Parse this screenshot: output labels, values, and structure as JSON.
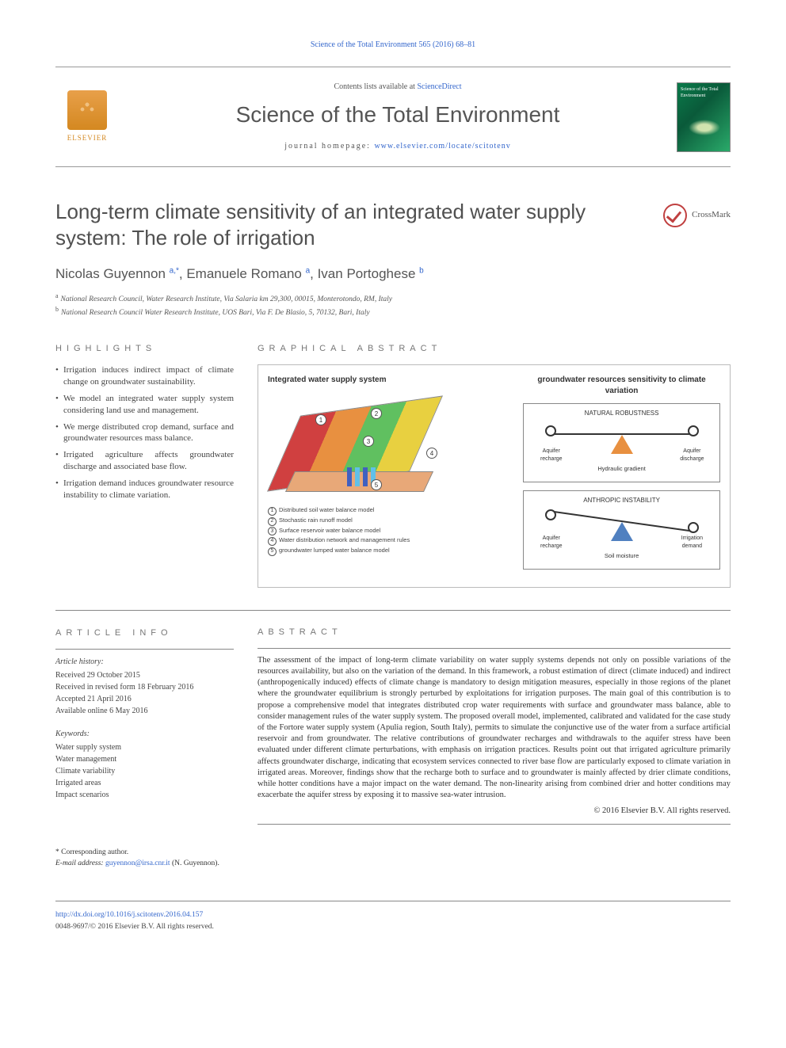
{
  "running_head": "Science of the Total Environment 565 (2016) 68–81",
  "masthead": {
    "publisher": "ELSEVIER",
    "contents_prefix": "Contents lists available at ",
    "contents_link": "ScienceDirect",
    "journal": "Science of the Total Environment",
    "homepage_prefix": "journal homepage: ",
    "homepage_link": "www.elsevier.com/locate/scitotenv",
    "cover_text": "Science of the Total Environment"
  },
  "article": {
    "title": "Long-term climate sensitivity of an integrated water supply system: The role of irrigation",
    "crossmark": "CrossMark",
    "authors_html": "Nicolas Guyennon <sup>a,*</sup>, Emanuele Romano <sup>a</sup>, Ivan Portoghese <sup>b</sup>",
    "affiliations": [
      {
        "sup": "a",
        "text": "National Research Council, Water Research Institute, Via Salaria km 29,300, 00015, Monterotondo, RM, Italy"
      },
      {
        "sup": "b",
        "text": "National Research Council Water Research Institute, UOS Bari, Via F. De Blasio, 5, 70132, Bari, Italy"
      }
    ]
  },
  "highlights": {
    "label": "HIGHLIGHTS",
    "items": [
      "Irrigation induces indirect impact of climate change on groundwater sustainability.",
      "We model an integrated water supply system considering land use and management.",
      "We merge distributed crop demand, surface and groundwater resources mass balance.",
      "Irrigated agriculture affects groundwater discharge and associated base flow.",
      "Irrigation demand induces groundwater resource instability to climate variation."
    ]
  },
  "graphical": {
    "label": "GRAPHICAL ABSTRACT",
    "left_title": "Integrated water supply system",
    "right_title": "groundwater resources sensitivity to climate variation",
    "legend": [
      "Distributed soil water balance model",
      "Stochastic rain runoff model",
      "Surface reservoir water balance model",
      "Water distribution network and management rules",
      "groundwater lumped water balance model"
    ],
    "box1": {
      "title": "NATURAL ROBUSTNESS",
      "left": "Aquifer recharge",
      "right": "Aquifer discharge",
      "mid": "Hydraulic gradient"
    },
    "box2": {
      "title": "ANTHROPIC INSTABILITY",
      "left": "Aquifer recharge",
      "right": "Irrigation demand",
      "mid": "Soil moisture"
    },
    "colors": {
      "red": "#d04040",
      "orange": "#e89040",
      "green": "#60c060",
      "yellow": "#e8d040",
      "tan": "#e8a878",
      "blue_down": "#4060c0",
      "blue_up": "#60c0e8",
      "fulcrum_orange": "#e89040",
      "fulcrum_blue": "#5080c0"
    }
  },
  "info": {
    "label": "ARTICLE INFO",
    "history_h": "Article history:",
    "history": [
      "Received 29 October 2015",
      "Received in revised form 18 February 2016",
      "Accepted 21 April 2016",
      "Available online 6 May 2016"
    ],
    "keywords_h": "Keywords:",
    "keywords": [
      "Water supply system",
      "Water management",
      "Climate variability",
      "Irrigated areas",
      "Impact scenarios"
    ]
  },
  "abstract": {
    "label": "ABSTRACT",
    "text": "The assessment of the impact of long-term climate variability on water supply systems depends not only on possible variations of the resources availability, but also on the variation of the demand. In this framework, a robust estimation of direct (climate induced) and indirect (anthropogenically induced) effects of climate change is mandatory to design mitigation measures, especially in those regions of the planet where the groundwater equilibrium is strongly perturbed by exploitations for irrigation purposes. The main goal of this contribution is to propose a comprehensive model that integrates distributed crop water requirements with surface and groundwater mass balance, able to consider management rules of the water supply system. The proposed overall model, implemented, calibrated and validated for the case study of the Fortore water supply system (Apulia region, South Italy), permits to simulate the conjunctive use of the water from a surface artificial reservoir and from groundwater. The relative contributions of groundwater recharges and withdrawals to the aquifer stress have been evaluated under different climate perturbations, with emphasis on irrigation practices. Results point out that irrigated agriculture primarily affects groundwater discharge, indicating that ecosystem services connected to river base flow are particularly exposed to climate variation in irrigated areas. Moreover, findings show that the recharge both to surface and to groundwater is mainly affected by drier climate conditions, while hotter conditions have a major impact on the water demand. The non-linearity arising from combined drier and hotter conditions may exacerbate the aquifer stress by exposing it to massive sea-water intrusion.",
    "copyright": "© 2016 Elsevier B.V. All rights reserved."
  },
  "footnote": {
    "corr": "* Corresponding author.",
    "email_label": "E-mail address: ",
    "email": "guyennon@irsa.cnr.it",
    "email_name": " (N. Guyennon)."
  },
  "footer": {
    "doi": "http://dx.doi.org/10.1016/j.scitotenv.2016.04.157",
    "issn": "0048-9697/© 2016 Elsevier B.V. All rights reserved."
  }
}
